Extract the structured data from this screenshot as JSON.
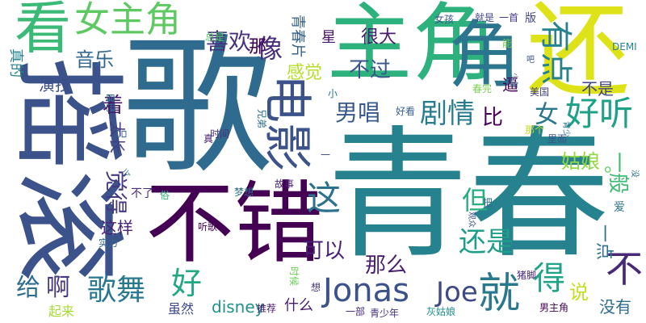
{
  "words": [
    {
      "text": "歌",
      "color": "#2f6b8e"
    },
    {
      "text": "青春",
      "color": "#26828e"
    },
    {
      "text": "摇滚",
      "color": "#3b528b"
    },
    {
      "text": "主角",
      "color": "#2db27d"
    },
    {
      "text": "还",
      "color": "#dde318"
    },
    {
      "text": "不错",
      "color": "#440154"
    },
    {
      "text": "看",
      "color": "#3aba76"
    },
    {
      "text": "角",
      "color": "#2b758e"
    },
    {
      "text": "女主角",
      "color": "#5ec962"
    },
    {
      "text": "电影",
      "color": "#3b528b"
    },
    {
      "text": "就",
      "color": "#2a788e"
    },
    {
      "text": "Jonas",
      "color": "#3b528b"
    },
    {
      "text": "Joe",
      "color": "#3e4989"
    },
    {
      "text": "好听",
      "color": "#1fa187"
    },
    {
      "text": "喜欢",
      "color": "#46327e"
    },
    {
      "text": "像",
      "color": "#472d7b"
    },
    {
      "text": "有点",
      "color": "#26828e"
    },
    {
      "text": "歌舞",
      "color": "#2a788e"
    },
    {
      "text": "男唱",
      "color": "#38598c"
    },
    {
      "text": "剧情",
      "color": "#287c8e"
    },
    {
      "text": "不过",
      "color": "#39568c"
    },
    {
      "text": "感觉",
      "color": "#b5de2b"
    },
    {
      "text": "那",
      "color": "#440154"
    },
    {
      "text": "这",
      "color": "#2c728e"
    },
    {
      "text": "觉得",
      "color": "#443983"
    },
    {
      "text": "可以",
      "color": "#482173"
    },
    {
      "text": "那么",
      "color": "#481f70"
    },
    {
      "text": "还是",
      "color": "#1f9e89"
    },
    {
      "text": "好",
      "color": "#22a884"
    },
    {
      "text": "给",
      "color": "#2e6d8e"
    },
    {
      "text": "啊",
      "color": "#443a83"
    },
    {
      "text": "音乐",
      "color": "#31688e"
    },
    {
      "text": "比",
      "color": "#440154"
    },
    {
      "text": "女",
      "color": "#2a788e"
    },
    {
      "text": "着",
      "color": "#481a6c"
    },
    {
      "text": "得",
      "color": "#20a386"
    },
    {
      "text": "不",
      "color": "#482878"
    },
    {
      "text": "但",
      "color": "#29af7f"
    },
    {
      "text": "姑娘",
      "color": "#90d743"
    },
    {
      "text": "一般",
      "color": "#3fbc73"
    },
    {
      "text": "说",
      "color": "#c2df23"
    },
    {
      "text": "星",
      "color": "#471365"
    },
    {
      "text": "很大",
      "color": "#481f70"
    },
    {
      "text": "演技",
      "color": "#3c4f8a"
    },
    {
      "text": "真的",
      "color": "#26828e"
    },
    {
      "text": "不是",
      "color": "#404688"
    },
    {
      "text": "逼",
      "color": "#440154"
    },
    {
      "text": "这样",
      "color": "#482475"
    },
    {
      "text": "一点",
      "color": "#2c718e"
    },
    {
      "text": "disney",
      "color": "#21918c"
    },
    {
      "text": "什么",
      "color": "#481b6d"
    },
    {
      "text": "虽然",
      "color": "#3e4989"
    },
    {
      "text": "没有",
      "color": "#2f6c8e"
    },
    {
      "text": "起来",
      "color": "#a8db34"
    },
    {
      "text": "青春片",
      "color": "#355f8d"
    },
    {
      "text": "太长",
      "color": "#433e85"
    },
    {
      "text": "女孩",
      "color": "#3b528b"
    },
    {
      "text": "就是",
      "color": "#3f4788"
    },
    {
      "text": "一首",
      "color": "#453882"
    },
    {
      "text": "能",
      "color": "#7ad151"
    },
    {
      "text": "版",
      "color": "#414487"
    },
    {
      "text": "DEMI",
      "color": "#26828e"
    },
    {
      "text": "总是",
      "color": "#52c569"
    },
    {
      "text": "不了",
      "color": "#472f7d"
    },
    {
      "text": "俗",
      "color": "#35b779"
    },
    {
      "text": "梦想",
      "color": "#2d708e"
    },
    {
      "text": "故事",
      "color": "#482576"
    },
    {
      "text": "兄弟",
      "color": "#2e6e8e"
    },
    {
      "text": "时间",
      "color": "#472c7a"
    },
    {
      "text": "小",
      "color": "#2c738e"
    },
    {
      "text": "真",
      "color": "#481f70"
    },
    {
      "text": "里面",
      "color": "#3a548c"
    },
    {
      "text": "美国",
      "color": "#424086"
    },
    {
      "text": "那个",
      "color": "#bddf26"
    },
    {
      "text": "好看",
      "color": "#34618d"
    },
    {
      "text": "少年",
      "color": "#31688e"
    },
    {
      "text": "春完",
      "color": "#7ad151"
    },
    {
      "text": "爱",
      "color": "#2c728e"
    },
    {
      "text": "没",
      "color": "#2d708e"
    },
    {
      "text": "推荐",
      "color": "#48186a"
    },
    {
      "text": "想",
      "color": "#443a83"
    },
    {
      "text": "时候",
      "color": "#6ece58"
    },
    {
      "text": "实力",
      "color": "#31688e"
    },
    {
      "text": "听歌",
      "color": "#440154"
    },
    {
      "text": "猪脚",
      "color": "#482374"
    },
    {
      "text": "灰姑娘",
      "color": "#228d8d"
    },
    {
      "text": "男主角",
      "color": "#440154"
    },
    {
      "text": "一部",
      "color": "#472c7a"
    },
    {
      "text": "青少年",
      "color": "#46337e"
    },
    {
      "text": "自己",
      "color": "#2d708e"
    },
    {
      "text": "只",
      "color": "#33638d"
    },
    {
      "text": "一",
      "color": "#3b528b"
    },
    {
      "text": "么",
      "color": "#2b748e"
    },
    {
      "text": "把",
      "color": "#2f6c8e"
    },
    {
      "text": "观众",
      "color": "#3b528b"
    },
    {
      "text": "青少",
      "color": "#2a768e"
    },
    {
      "text": "吧",
      "color": "#3a548c"
    },
    {
      "text": "。",
      "color": "#5ec962"
    }
  ]
}
